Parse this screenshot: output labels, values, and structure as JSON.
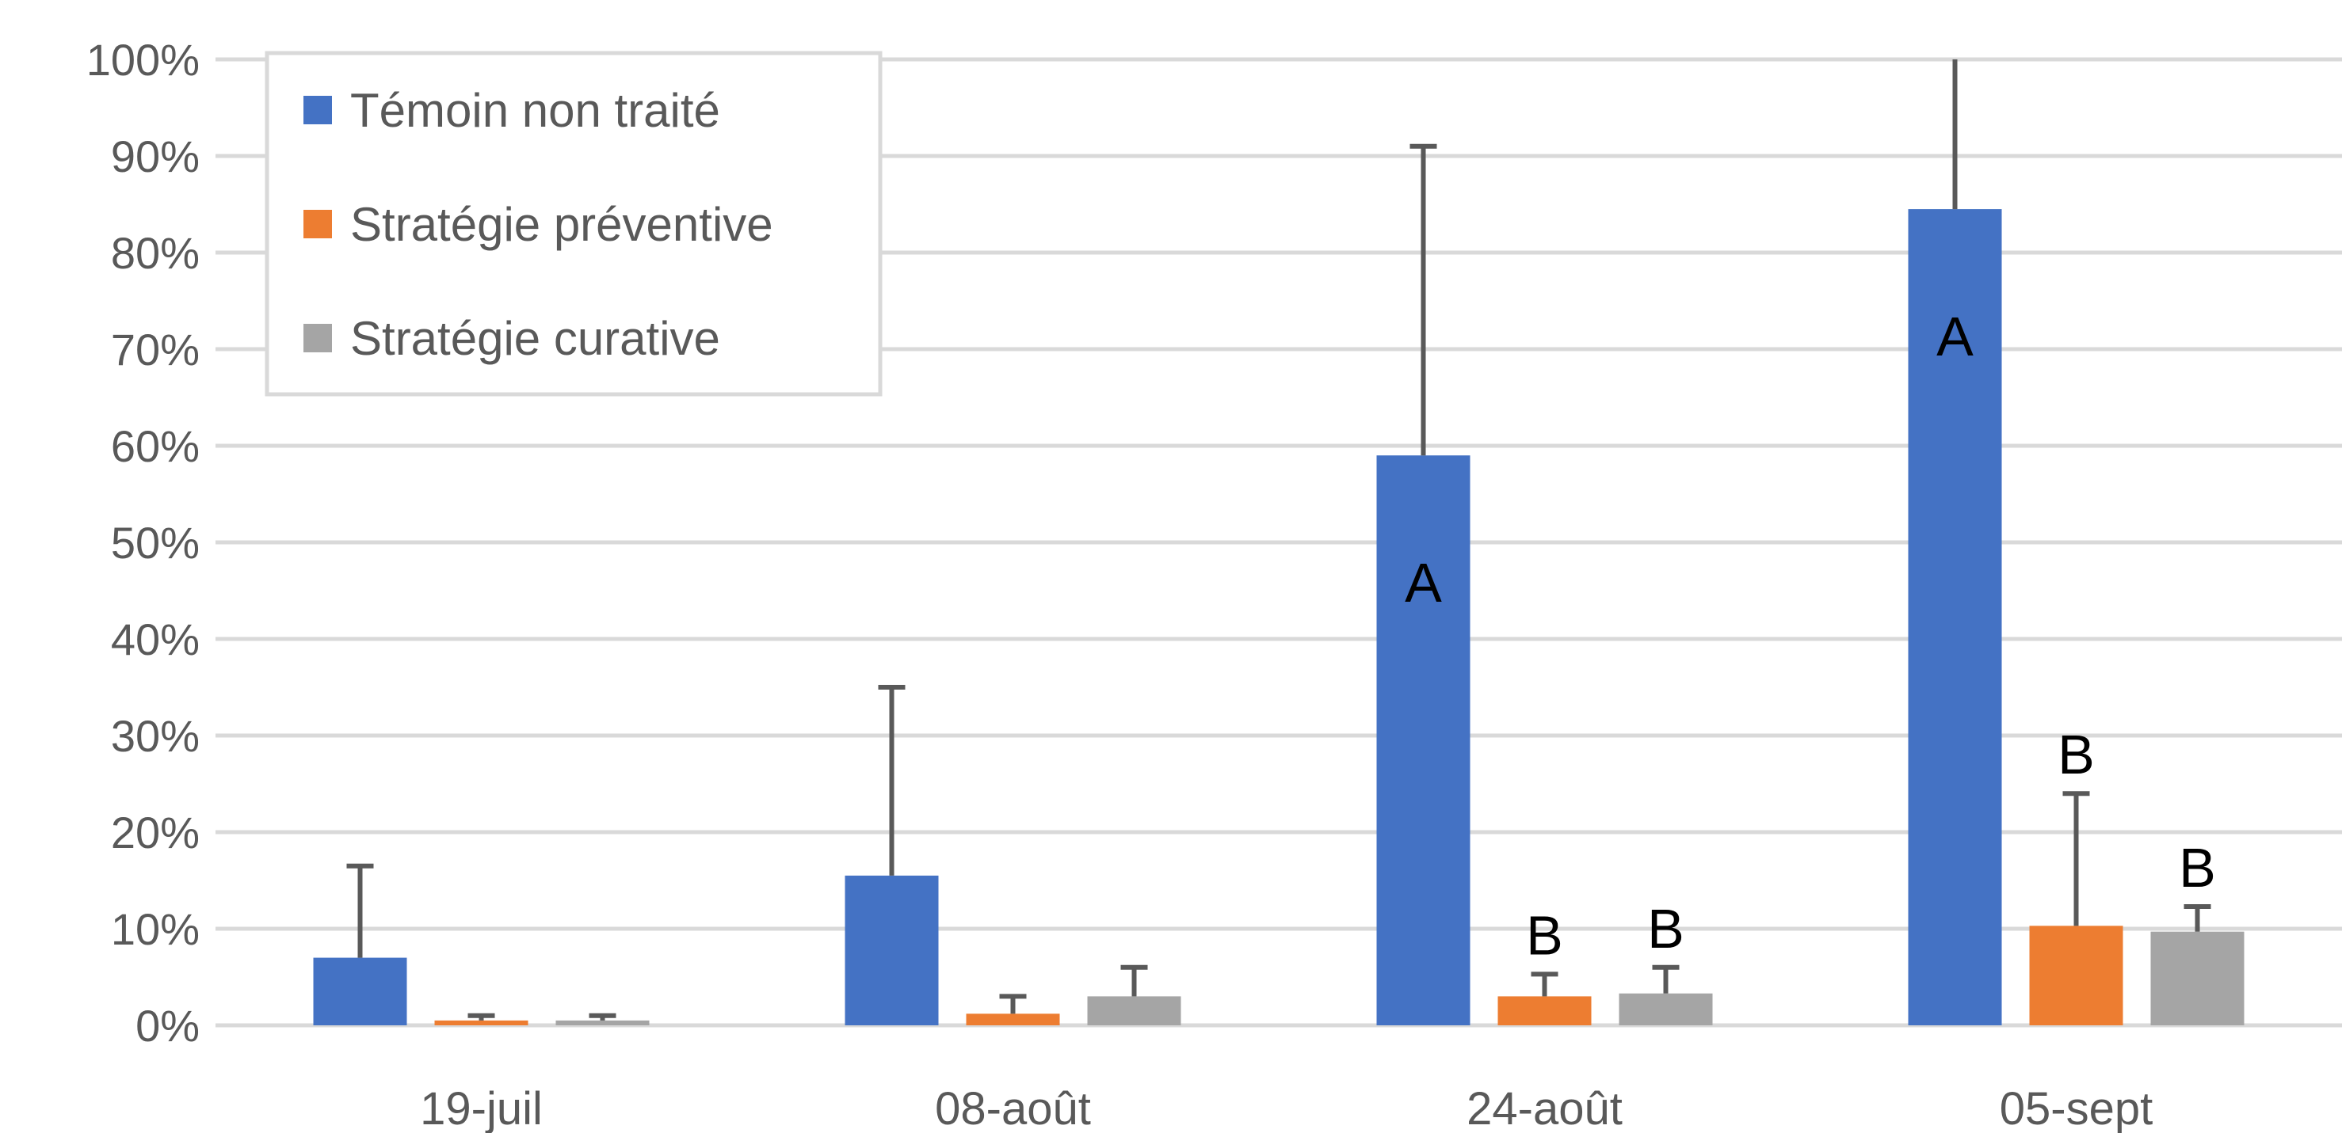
{
  "chart_data": {
    "type": "bar",
    "categories": [
      "19-juil",
      "08-août",
      "24-août",
      "05-sept"
    ],
    "series": [
      {
        "name": "Témoin non traité",
        "color": "#4472C4",
        "values": [
          7,
          15.5,
          59,
          84.5
        ],
        "error_upper": [
          16.5,
          35,
          91,
          100
        ],
        "labels": [
          "",
          "",
          "A",
          "A"
        ]
      },
      {
        "name": "Stratégie préventive",
        "color": "#ED7D31",
        "values": [
          0.5,
          1.2,
          3,
          10.3
        ],
        "error_upper": [
          1,
          3,
          5.3,
          24
        ],
        "labels": [
          "",
          "",
          "B",
          "B"
        ]
      },
      {
        "name": "Stratégie curative",
        "color": "#A5A5A5",
        "values": [
          0.5,
          3,
          3.3,
          9.7
        ],
        "error_upper": [
          1,
          6,
          6,
          12.3
        ],
        "labels": [
          "",
          "",
          "B",
          "B"
        ]
      }
    ],
    "yticks": [
      "0%",
      "10%",
      "20%",
      "30%",
      "40%",
      "50%",
      "60%",
      "70%",
      "80%",
      "90%",
      "100%"
    ],
    "ylim": [
      0,
      100
    ],
    "y_format": "percent",
    "grid": true,
    "legend": "top-left",
    "error_bar_color": "#595959",
    "grid_color": "#D9D9D9"
  }
}
